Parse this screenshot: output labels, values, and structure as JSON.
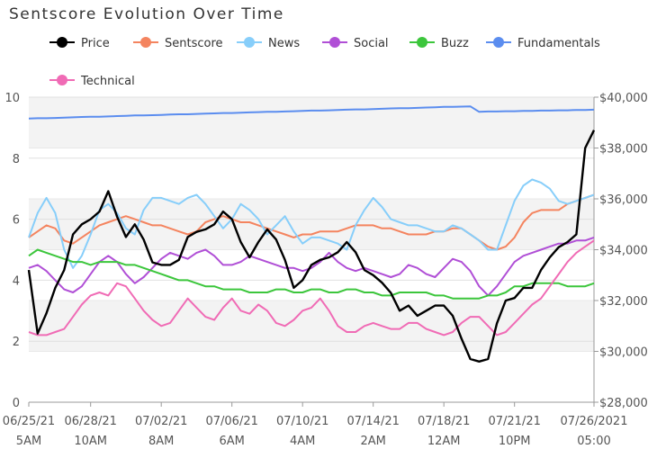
{
  "chart_data": {
    "type": "line",
    "title": "Sentscore Evolution Over Time",
    "categories": [
      "06/25/21 5AM",
      null,
      null,
      null,
      null,
      null,
      null,
      "06/28/21 10AM",
      null,
      null,
      null,
      null,
      null,
      null,
      null,
      "07/02/21 8AM",
      null,
      null,
      null,
      null,
      null,
      null,
      null,
      "07/06/21 6AM",
      null,
      null,
      null,
      null,
      null,
      null,
      null,
      "07/10/21 4AM",
      null,
      null,
      null,
      null,
      null,
      null,
      null,
      "07/14/21 2AM",
      null,
      null,
      null,
      null,
      null,
      null,
      null,
      "07/18/21 12AM",
      null,
      null,
      null,
      null,
      null,
      null,
      null,
      "07/21/21 10PM",
      null,
      null,
      null,
      null,
      null,
      null,
      null,
      null,
      "07/26/2021 05:00"
    ],
    "ylim": [
      0,
      10
    ],
    "yticks": [
      0,
      2,
      4,
      6,
      8,
      10
    ],
    "y2lim": [
      28000,
      40000
    ],
    "y2ticks": [
      {
        "value": 28000,
        "label": "$28,000"
      },
      {
        "value": 30000,
        "label": "$30,000"
      },
      {
        "value": 32000,
        "label": "$32,000"
      },
      {
        "value": 34000,
        "label": "$34,000"
      },
      {
        "value": 36000,
        "label": "$36,000"
      },
      {
        "value": 38000,
        "label": "$38,000"
      },
      {
        "value": 40000,
        "label": "$40,000"
      }
    ],
    "grid": true,
    "series": [
      {
        "name": "Price",
        "color": "#000000",
        "axis": "y2",
        "values": [
          33200,
          30700,
          31500,
          32500,
          33200,
          34600,
          35000,
          35200,
          35500,
          36300,
          35300,
          34500,
          35000,
          34400,
          33500,
          33400,
          33400,
          33600,
          34500,
          34700,
          34800,
          35000,
          35500,
          35200,
          34300,
          33700,
          34300,
          34800,
          34400,
          33600,
          32500,
          32800,
          33400,
          33600,
          33700,
          33900,
          34300,
          33900,
          33200,
          33000,
          32700,
          32300,
          31600,
          31800,
          31400,
          31600,
          31800,
          31800,
          31400,
          30500,
          29700,
          29600,
          29700,
          31100,
          32000,
          32100,
          32500,
          32500,
          33200,
          33700,
          34100,
          34300,
          34600,
          38000,
          38700
        ]
      },
      {
        "name": "Sentscore",
        "color": "#f4845f",
        "values": [
          5.4,
          5.6,
          5.8,
          5.7,
          5.3,
          5.2,
          5.4,
          5.6,
          5.8,
          5.9,
          6.0,
          6.1,
          6.0,
          5.9,
          5.8,
          5.8,
          5.7,
          5.6,
          5.5,
          5.6,
          5.9,
          6.0,
          6.1,
          6.0,
          5.9,
          5.9,
          5.8,
          5.7,
          5.6,
          5.5,
          5.4,
          5.5,
          5.5,
          5.6,
          5.6,
          5.6,
          5.7,
          5.8,
          5.8,
          5.8,
          5.7,
          5.7,
          5.6,
          5.5,
          5.5,
          5.5,
          5.6,
          5.6,
          5.7,
          5.7,
          5.5,
          5.3,
          5.1,
          5.0,
          5.1,
          5.4,
          5.9,
          6.2,
          6.3,
          6.3,
          6.3,
          6.5,
          6.6,
          6.7,
          6.8
        ]
      },
      {
        "name": "News",
        "color": "#87cefa",
        "values": [
          5.4,
          6.2,
          6.7,
          6.2,
          5.0,
          4.4,
          4.8,
          5.5,
          6.3,
          6.5,
          6.2,
          5.7,
          5.5,
          6.3,
          6.7,
          6.7,
          6.6,
          6.5,
          6.7,
          6.8,
          6.5,
          6.1,
          5.7,
          6.0,
          6.5,
          6.3,
          6.0,
          5.5,
          5.8,
          6.1,
          5.6,
          5.2,
          5.4,
          5.4,
          5.3,
          5.2,
          5.0,
          5.8,
          6.3,
          6.7,
          6.4,
          6.0,
          5.9,
          5.8,
          5.8,
          5.7,
          5.6,
          5.6,
          5.8,
          5.7,
          5.5,
          5.3,
          5.0,
          5.0,
          5.8,
          6.6,
          7.1,
          7.3,
          7.2,
          7.0,
          6.6,
          6.5,
          6.6,
          6.7,
          6.8
        ]
      },
      {
        "name": "Social",
        "color": "#b04fd6",
        "values": [
          4.4,
          4.5,
          4.3,
          4.0,
          3.7,
          3.6,
          3.8,
          4.2,
          4.6,
          4.8,
          4.6,
          4.2,
          3.9,
          4.1,
          4.4,
          4.7,
          4.9,
          4.8,
          4.7,
          4.9,
          5.0,
          4.8,
          4.5,
          4.5,
          4.6,
          4.8,
          4.7,
          4.6,
          4.5,
          4.4,
          4.4,
          4.3,
          4.4,
          4.6,
          4.9,
          4.6,
          4.4,
          4.3,
          4.4,
          4.3,
          4.2,
          4.1,
          4.2,
          4.5,
          4.4,
          4.2,
          4.1,
          4.4,
          4.7,
          4.6,
          4.3,
          3.8,
          3.5,
          3.8,
          4.2,
          4.6,
          4.8,
          4.9,
          5.0,
          5.1,
          5.2,
          5.2,
          5.3,
          5.3,
          5.4
        ]
      },
      {
        "name": "Buzz",
        "color": "#3cc63c",
        "values": [
          4.8,
          5.0,
          4.9,
          4.8,
          4.7,
          4.6,
          4.6,
          4.5,
          4.6,
          4.6,
          4.6,
          4.5,
          4.5,
          4.4,
          4.3,
          4.2,
          4.1,
          4.0,
          4.0,
          3.9,
          3.8,
          3.8,
          3.7,
          3.7,
          3.7,
          3.6,
          3.6,
          3.6,
          3.7,
          3.7,
          3.6,
          3.6,
          3.7,
          3.7,
          3.6,
          3.6,
          3.7,
          3.7,
          3.6,
          3.6,
          3.5,
          3.5,
          3.6,
          3.6,
          3.6,
          3.6,
          3.5,
          3.5,
          3.4,
          3.4,
          3.4,
          3.4,
          3.5,
          3.5,
          3.6,
          3.8,
          3.8,
          3.9,
          3.9,
          3.9,
          3.9,
          3.8,
          3.8,
          3.8,
          3.9
        ]
      },
      {
        "name": "Fundamentals",
        "color": "#5b8def",
        "values": [
          9.3,
          9.31,
          9.31,
          9.32,
          9.33,
          9.34,
          9.35,
          9.36,
          9.36,
          9.37,
          9.38,
          9.39,
          9.4,
          9.4,
          9.41,
          9.42,
          9.43,
          9.44,
          9.44,
          9.45,
          9.46,
          9.47,
          9.48,
          9.48,
          9.49,
          9.5,
          9.51,
          9.52,
          9.52,
          9.53,
          9.54,
          9.55,
          9.56,
          9.56,
          9.57,
          9.58,
          9.59,
          9.6,
          9.6,
          9.61,
          9.62,
          9.63,
          9.64,
          9.64,
          9.65,
          9.66,
          9.67,
          9.68,
          9.68,
          9.69,
          9.7,
          9.52,
          9.53,
          9.53,
          9.54,
          9.54,
          9.55,
          9.55,
          9.56,
          9.56,
          9.57,
          9.57,
          9.58,
          9.58,
          9.59
        ]
      },
      {
        "name": "Technical",
        "color": "#f06bb5",
        "values": [
          2.3,
          2.2,
          2.2,
          2.3,
          2.4,
          2.8,
          3.2,
          3.5,
          3.6,
          3.5,
          3.9,
          3.8,
          3.4,
          3.0,
          2.7,
          2.5,
          2.6,
          3.0,
          3.4,
          3.1,
          2.8,
          2.7,
          3.1,
          3.4,
          3.0,
          2.9,
          3.2,
          3.0,
          2.6,
          2.5,
          2.7,
          3.0,
          3.1,
          3.4,
          3.0,
          2.5,
          2.3,
          2.3,
          2.5,
          2.6,
          2.5,
          2.4,
          2.4,
          2.6,
          2.6,
          2.4,
          2.3,
          2.2,
          2.3,
          2.6,
          2.8,
          2.8,
          2.5,
          2.2,
          2.3,
          2.6,
          2.9,
          3.2,
          3.4,
          3.8,
          4.2,
          4.6,
          4.9,
          5.1,
          5.3
        ]
      }
    ]
  }
}
